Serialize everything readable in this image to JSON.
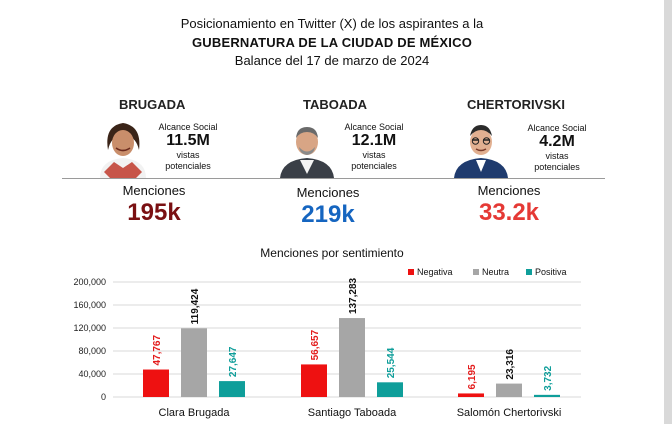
{
  "header": {
    "line1": "Posicionamiento en Twitter (X) de los aspirantes a la",
    "line2": "GUBERNATURA  DE LA CIUDAD DE MÉXICO",
    "line3": "Balance del 17 de marzo de 2024"
  },
  "candidates": [
    {
      "name": "BRUGADA",
      "reach_label": "Alcance Social",
      "reach": "11.5M",
      "reach_sub1": "vistas",
      "reach_sub2": "potenciales",
      "mentions_label": "Menciones",
      "mentions": "195k",
      "color": "#7a1012"
    },
    {
      "name": "TABOADA",
      "reach_label": "Alcance Social",
      "reach": "12.1M",
      "reach_sub1": "vistas",
      "reach_sub2": "potenciales",
      "mentions_label": "Menciones",
      "mentions": "219k",
      "color": "#1565c0"
    },
    {
      "name": "CHERTORIVSKI",
      "reach_label": "Alcance Social",
      "reach": "4.2M",
      "reach_sub1": "vistas",
      "reach_sub2": "potenciales",
      "mentions_label": "Menciones",
      "mentions": "33.2k",
      "color": "#e53935"
    }
  ],
  "chart_data": {
    "type": "bar",
    "title": "Menciones por sentimiento",
    "categories": [
      "Clara Brugada",
      "Santiago Taboada",
      "Salomón Chertorivski"
    ],
    "series": [
      {
        "name": "Negativa",
        "color": "#ee1111",
        "label_color": "#e31b1b",
        "values": [
          47767,
          56657,
          6195
        ],
        "labels": [
          "47,767",
          "56,657",
          "6,195"
        ]
      },
      {
        "name": "Neutra",
        "color": "#a6a6a6",
        "label_color": "#111111",
        "values": [
          119424,
          137283,
          23316
        ],
        "labels": [
          "119,424",
          "137,283",
          "23,316"
        ]
      },
      {
        "name": "Positiva",
        "color": "#0f9e9a",
        "label_color": "#0f9e9a",
        "values": [
          27647,
          25544,
          3732
        ],
        "labels": [
          "27,647",
          "25,544",
          "3,732"
        ]
      }
    ],
    "ylim": [
      0,
      200000
    ],
    "yticks": [
      0,
      40000,
      80000,
      120000,
      160000,
      200000
    ],
    "ytick_labels": [
      "0",
      "40,000",
      "80,000",
      "120,000",
      "160,000",
      "200,000"
    ],
    "grid": true,
    "legend": "top-right"
  }
}
